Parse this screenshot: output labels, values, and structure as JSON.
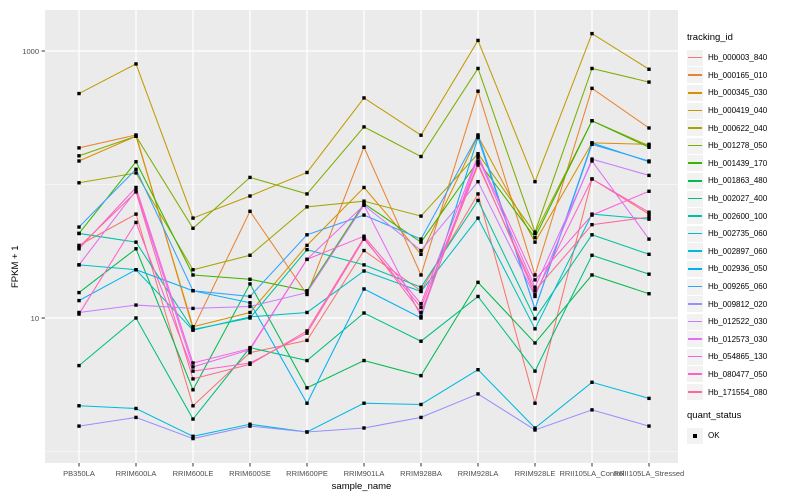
{
  "chart_data": {
    "type": "line",
    "title": "",
    "xlabel": "sample_name",
    "ylabel": "FPKM + 1",
    "y_scale": "log10",
    "y_tick_labels": [
      "1000",
      "10"
    ],
    "y_tick_values": [
      1000,
      10
    ],
    "y_minor_values": [
      100,
      1
    ],
    "ylim": [
      1.1,
      1600
    ],
    "grid": true,
    "panel_bg": "#EBEBEB",
    "grid_color": "#FFFFFF",
    "point_shape": "filled-square",
    "point_color": "#000000",
    "legend_position": "right",
    "categories": [
      "PB350LA",
      "RRIM600LA",
      "RRIM600LE",
      "RRIM600SE",
      "RRIM600PE",
      "RRIM901LA",
      "RRIM928BA",
      "RRIM928LA",
      "RRIM928LE",
      "RRII105LA_Control",
      "RRII105LA_Stressed"
    ],
    "series": [
      {
        "name": "Hb_000003_840",
        "color": "#F8766D",
        "values": [
          35,
          60,
          2.2,
          5.5,
          6.8,
          32,
          16,
          85,
          2.3,
          110,
          60
        ]
      },
      {
        "name": "Hb_000165_010",
        "color": "#EA8331",
        "values": [
          188,
          235,
          8.3,
          63,
          15,
          190,
          21,
          500,
          21,
          525,
          265
        ]
      },
      {
        "name": "Hb_000345_030",
        "color": "#D89000",
        "values": [
          150,
          230,
          8.6,
          11,
          35,
          95,
          30,
          230,
          37,
          205,
          200
        ]
      },
      {
        "name": "Hb_000419_040",
        "color": "#C09B00",
        "values": [
          480,
          800,
          56,
          82,
          123,
          445,
          234,
          1200,
          105,
          1350,
          730
        ]
      },
      {
        "name": "Hb_000622_040",
        "color": "#A3A500",
        "values": [
          103,
          122,
          23,
          29.5,
          68,
          75,
          58,
          170,
          43,
          300,
          195
        ]
      },
      {
        "name": "Hb_001278_050",
        "color": "#7CAE00",
        "values": [
          164,
          230,
          47,
          113,
          85,
          270,
          162,
          740,
          44,
          740,
          585
        ]
      },
      {
        "name": "Hb_001439_170",
        "color": "#39B600",
        "values": [
          43,
          148,
          21,
          19.5,
          16,
          72,
          37,
          150,
          40,
          300,
          190
        ]
      },
      {
        "name": "Hb_001863_480",
        "color": "#00BB4E",
        "values": [
          15.5,
          33,
          2.9,
          18,
          3.0,
          4.8,
          3.7,
          18.5,
          6.5,
          21,
          15.2
        ]
      },
      {
        "name": "Hb_002027_400",
        "color": "#00BF7D",
        "values": [
          4.4,
          10,
          1.75,
          6.0,
          4.8,
          10.9,
          6.7,
          14.5,
          4.0,
          29.5,
          21.3
        ]
      },
      {
        "name": "Hb_002600_100",
        "color": "#00C1A3",
        "values": [
          43,
          37,
          8.2,
          10,
          32.5,
          25,
          17,
          76,
          9.9,
          42,
          30
        ]
      },
      {
        "name": "Hb_002735_060",
        "color": "#00BFC4",
        "values": [
          25,
          23,
          8.1,
          10.2,
          11,
          22.5,
          15.8,
          56,
          8.3,
          60,
          55
        ]
      },
      {
        "name": "Hb_002897_060",
        "color": "#00BAE0",
        "values": [
          2.2,
          2.1,
          1.3,
          1.6,
          1.4,
          2.3,
          2.25,
          4.1,
          1.5,
          3.3,
          2.5
        ]
      },
      {
        "name": "Hb_002936_050",
        "color": "#00B0F6",
        "values": [
          13.5,
          23,
          16,
          13,
          2.3,
          16.5,
          10,
          225,
          11.7,
          205,
          148
        ]
      },
      {
        "name": "Hb_009265_060",
        "color": "#35A2FF",
        "values": [
          48,
          130,
          16,
          14.5,
          42,
          59,
          39,
          235,
          11.7,
          200,
          150
        ]
      },
      {
        "name": "Hb_009812_020",
        "color": "#9590FF",
        "values": [
          1.55,
          1.8,
          1.25,
          1.55,
          1.4,
          1.5,
          1.8,
          2.7,
          1.45,
          2.05,
          1.55
        ]
      },
      {
        "name": "Hb_012522_030",
        "color": "#C77CFF",
        "values": [
          11,
          12.5,
          11.8,
          12.2,
          15.5,
          70,
          32,
          105,
          14.5,
          155,
          117
        ]
      },
      {
        "name": "Hb_012573_030",
        "color": "#E76BF3",
        "values": [
          25,
          90,
          4.3,
          5.8,
          27.5,
          70,
          10.3,
          160,
          17,
          150,
          39
        ]
      },
      {
        "name": "Hb_054865_130",
        "color": "#FA62DB",
        "values": [
          33,
          95,
          4.6,
          5.9,
          27.5,
          41,
          12.8,
          165,
          19.3,
          59,
          89
        ]
      },
      {
        "name": "Hb_080477_050",
        "color": "#FF61CC",
        "values": [
          10.7,
          52,
          4.0,
          4.6,
          7.7,
          39,
          12,
          145,
          15,
          110,
          62
        ]
      },
      {
        "name": "Hb_171554_080",
        "color": "#FF6A98",
        "values": [
          34,
          88,
          3.5,
          4.5,
          8.0,
          40,
          11,
          140,
          16,
          50,
          57
        ]
      }
    ]
  },
  "legend": {
    "tracking_title": "tracking_id",
    "quant_title": "quant_status",
    "quant_items": [
      {
        "label": "OK"
      }
    ]
  }
}
